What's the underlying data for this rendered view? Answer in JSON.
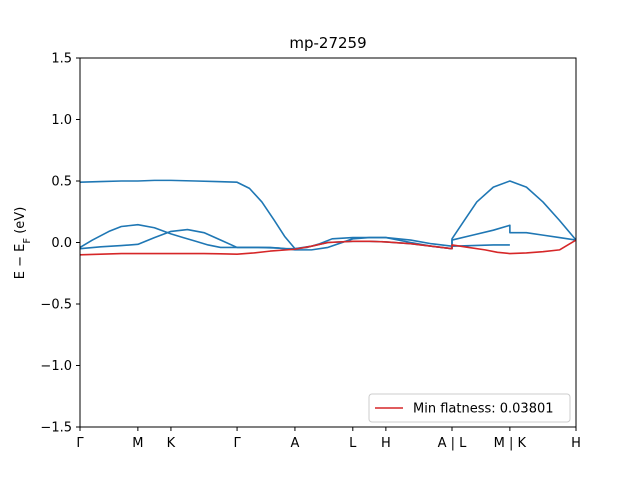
{
  "chart_data": {
    "type": "line",
    "title": "mp-27259",
    "ylabel": "E − E_F (eV)",
    "xlabel": "",
    "ylim": [
      -1.5,
      1.5
    ],
    "xlim": [
      0,
      12
    ],
    "yticks": [
      -1.5,
      -1.0,
      -0.5,
      0.0,
      0.5,
      1.0,
      1.5
    ],
    "ytick_labels": [
      "−1.5",
      "−1.0",
      "−0.5",
      "0.0",
      "0.5",
      "1.0",
      "1.5"
    ],
    "xticks": [
      {
        "x": 0,
        "label": "Γ"
      },
      {
        "x": 1.4,
        "label": "M"
      },
      {
        "x": 2.2,
        "label": "K"
      },
      {
        "x": 3.8,
        "label": "Γ"
      },
      {
        "x": 5.2,
        "label": "A"
      },
      {
        "x": 6.6,
        "label": "L"
      },
      {
        "x": 7.4,
        "label": "H"
      },
      {
        "x": 9.0,
        "label": "A | L"
      },
      {
        "x": 10.4,
        "label": "M | K"
      },
      {
        "x": 12,
        "label": "H"
      }
    ],
    "grid": false,
    "legend": {
      "location": "lower-right",
      "entries": [
        {
          "name": "Min flatness: 0.03801",
          "color": "#d62728"
        }
      ]
    },
    "colors": {
      "bands": "#1f77b4",
      "flat_band": "#d62728"
    },
    "series": [
      {
        "role": "band",
        "color": "#1f77b4",
        "x": [
          0,
          0.5,
          1.0,
          1.4,
          1.8,
          2.2,
          2.8,
          3.3,
          3.8,
          4.1,
          4.4,
          4.7,
          4.95,
          5.2,
          5.6,
          6.0,
          6.6,
          7.0,
          7.4,
          8.0,
          8.5,
          9.0,
          9.0,
          9.3,
          9.6,
          10.0,
          10.4,
          10.8,
          11.2,
          11.6,
          12.0
        ],
        "y": [
          0.49,
          0.495,
          0.5,
          0.5,
          0.505,
          0.505,
          0.5,
          0.495,
          0.49,
          0.44,
          0.33,
          0.18,
          0.05,
          -0.05,
          -0.03,
          0.0,
          0.01,
          0.01,
          0.005,
          -0.01,
          -0.03,
          -0.05,
          0.03,
          0.18,
          0.33,
          0.45,
          0.5,
          0.45,
          0.33,
          0.18,
          0.02
        ]
      },
      {
        "role": "band",
        "color": "#1f77b4",
        "x": [
          0,
          0.3,
          0.7,
          1.0,
          1.4,
          1.8,
          2.2,
          2.5,
          2.8,
          3.1,
          3.4,
          3.8,
          4.2,
          4.6,
          5.0,
          5.2,
          5.5,
          5.8,
          6.1,
          6.6,
          7.0,
          7.4,
          8.0,
          8.5,
          9.0,
          9.0,
          9.5,
          10.0,
          10.4
        ],
        "y": [
          -0.04,
          0.02,
          0.09,
          0.13,
          0.145,
          0.12,
          0.07,
          0.04,
          0.01,
          -0.02,
          -0.04,
          -0.04,
          -0.04,
          -0.04,
          -0.05,
          -0.05,
          -0.04,
          -0.01,
          0.03,
          0.04,
          0.04,
          0.04,
          0.02,
          -0.01,
          -0.03,
          -0.03,
          -0.025,
          -0.02,
          -0.02
        ]
      },
      {
        "role": "band",
        "color": "#1f77b4",
        "x": [
          0,
          0.5,
          1.0,
          1.4,
          1.8,
          2.2,
          2.6,
          3.0,
          3.4,
          3.8,
          4.3,
          4.8,
          5.2,
          5.6,
          6.0,
          6.6,
          7.0,
          7.4,
          8.0,
          8.5,
          9.0,
          9.0,
          9.5,
          10.0,
          10.4,
          10.4,
          10.8,
          11.2,
          11.6,
          12.0
        ],
        "y": [
          -0.05,
          -0.035,
          -0.025,
          -0.015,
          0.04,
          0.09,
          0.105,
          0.08,
          0.02,
          -0.04,
          -0.04,
          -0.045,
          -0.06,
          -0.06,
          -0.04,
          0.03,
          0.04,
          0.04,
          0.0,
          -0.03,
          -0.05,
          0.02,
          0.06,
          0.1,
          0.14,
          0.08,
          0.08,
          0.06,
          0.04,
          0.02
        ]
      },
      {
        "role": "flat_band",
        "name": "Min flatness: 0.03801",
        "color": "#d62728",
        "x": [
          0,
          0.5,
          1.0,
          1.4,
          1.8,
          2.2,
          2.6,
          3.0,
          3.4,
          3.8,
          4.2,
          4.6,
          5.0,
          5.2,
          5.6,
          6.0,
          6.6,
          7.0,
          7.4,
          8.0,
          8.5,
          9.0,
          9.0,
          9.4,
          9.8,
          10.1,
          10.4,
          10.8,
          11.2,
          11.6,
          12.0
        ],
        "y": [
          -0.1,
          -0.095,
          -0.09,
          -0.09,
          -0.09,
          -0.09,
          -0.09,
          -0.09,
          -0.092,
          -0.095,
          -0.085,
          -0.07,
          -0.06,
          -0.055,
          -0.03,
          0.0,
          0.01,
          0.01,
          0.005,
          -0.01,
          -0.03,
          -0.05,
          -0.02,
          -0.04,
          -0.06,
          -0.08,
          -0.09,
          -0.085,
          -0.075,
          -0.06,
          0.02
        ]
      }
    ]
  }
}
